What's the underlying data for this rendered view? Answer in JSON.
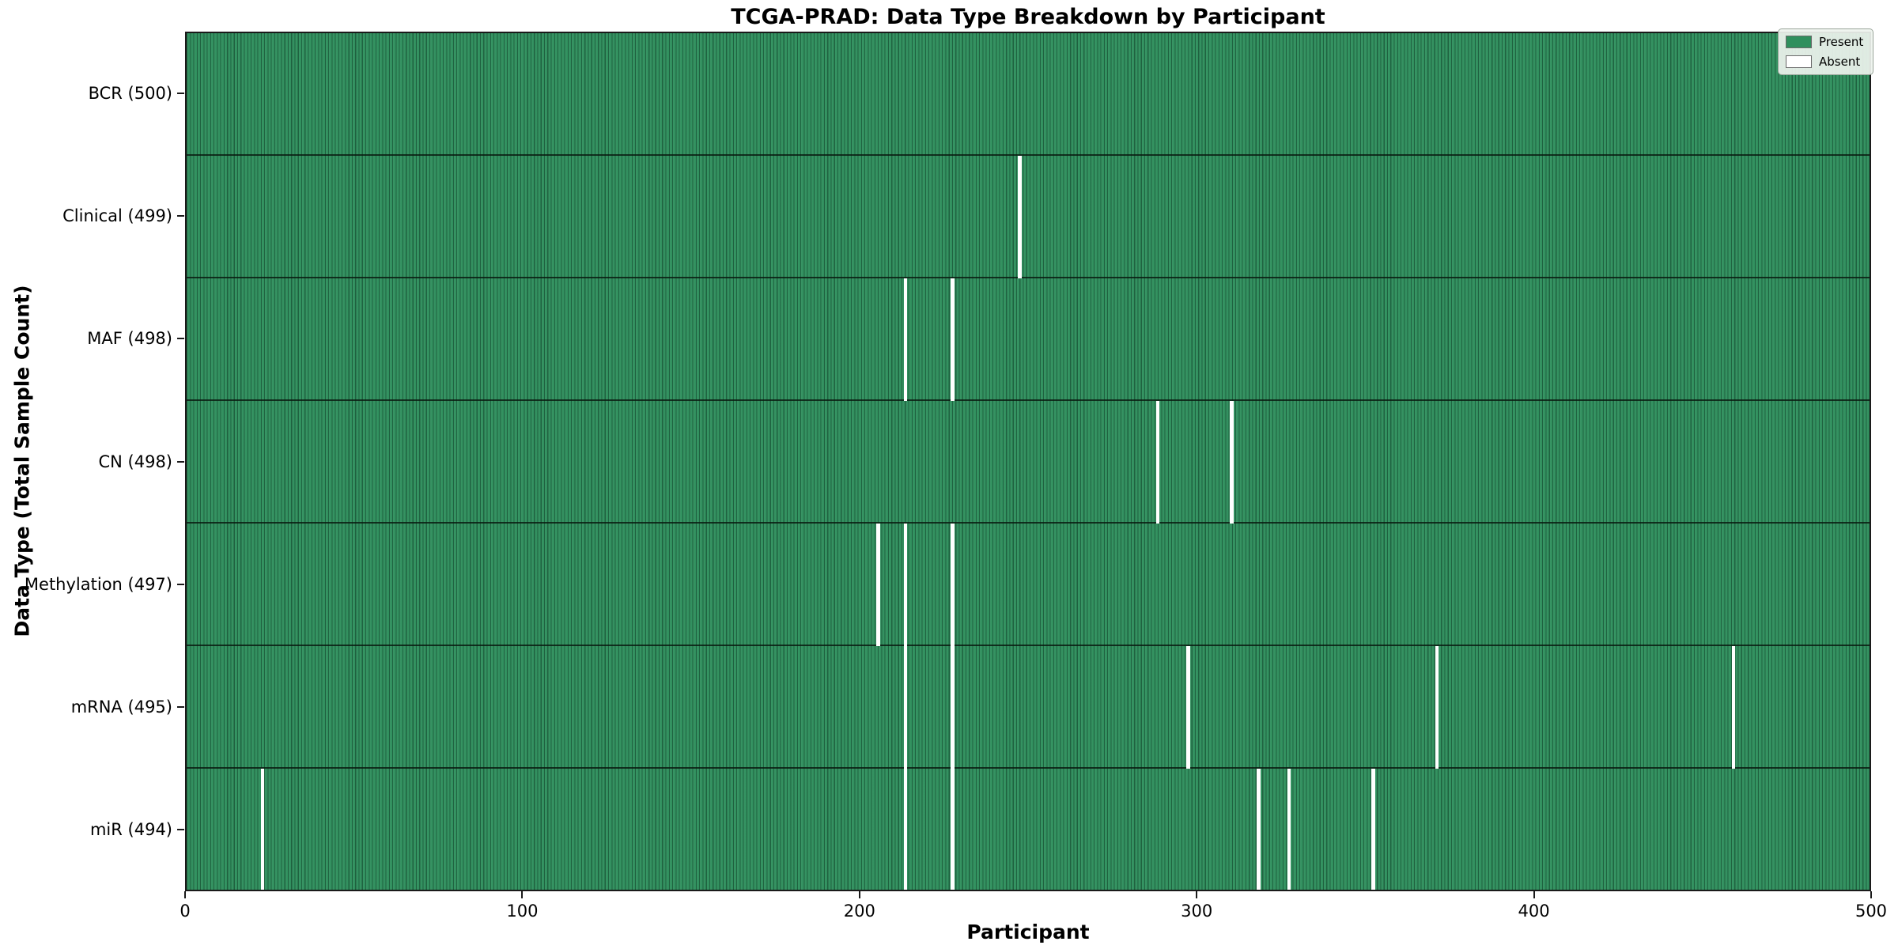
{
  "title": "TCGA-PRAD: Data Type Breakdown by Participant",
  "colors": {
    "present": "#2f8f5d",
    "absent": "#ffffff",
    "cell_edge": "rgba(5,25,15,0.38)",
    "row_separator": "rgba(10,26,16,0.82)",
    "plot_border": "#1a1a1a",
    "legend_background": "rgba(238,243,238,0.92)"
  },
  "legend": {
    "items": [
      {
        "label": "Present",
        "color": "#2f8f5d"
      },
      {
        "label": "Absent",
        "color": "#ffffff"
      }
    ]
  },
  "chart_data": {
    "type": "heatmap",
    "title": "TCGA-PRAD: Data Type Breakdown by Participant",
    "xlabel": "Participant",
    "ylabel": "Data Type (Total Sample Count)",
    "x_range": [
      0,
      500
    ],
    "x_ticks": [
      0,
      100,
      200,
      300,
      400,
      500
    ],
    "n_participants": 500,
    "grid": false,
    "legend_position": "upper right",
    "cell_states": {
      "present": 1,
      "absent": 0
    },
    "rows": [
      {
        "label": "BCR (500)",
        "data_type": "BCR",
        "total": 500,
        "absent_participants": []
      },
      {
        "label": "Clinical (499)",
        "data_type": "Clinical",
        "total": 499,
        "absent_participants": [
          247
        ]
      },
      {
        "label": "MAF (498)",
        "data_type": "MAF",
        "total": 498,
        "absent_participants": [
          213,
          227
        ]
      },
      {
        "label": "CN (498)",
        "data_type": "CN",
        "total": 498,
        "absent_participants": [
          288,
          310
        ]
      },
      {
        "label": "Methylation (497)",
        "data_type": "Methylation",
        "total": 497,
        "absent_participants": [
          205,
          213,
          227
        ]
      },
      {
        "label": "mRNA (495)",
        "data_type": "mRNA",
        "total": 495,
        "absent_participants": [
          213,
          227,
          297,
          371,
          459
        ]
      },
      {
        "label": "miR (494)",
        "data_type": "miR",
        "total": 494,
        "absent_participants": [
          22,
          213,
          227,
          318,
          327,
          352
        ]
      }
    ]
  }
}
